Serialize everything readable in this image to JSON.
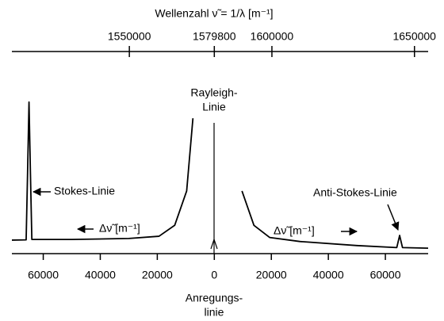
{
  "chart_data": {
    "type": "line",
    "x2label": "Wellenzahl ν̃ = 1/λ [m⁻¹]",
    "x": [
      -71000,
      -66000,
      -65500,
      -65000,
      -64500,
      -64000,
      -50000,
      -30000,
      -19400,
      -13900,
      -9700,
      -7500,
      7500,
      9700,
      13900,
      19400,
      30000,
      50000,
      64000,
      65000,
      66000,
      75000
    ],
    "values": [
      6.7,
      6.8,
      40,
      75,
      40,
      7,
      7,
      7.5,
      8.6,
      14,
      31,
      67,
      null,
      31,
      14,
      8,
      6,
      4,
      3,
      9,
      3,
      2.7
    ],
    "color": "#000000",
    "xlim": [
      -71000,
      75000
    ],
    "ylim": [
      0,
      100
    ],
    "xticks": [
      {
        "value": -60000,
        "label": "60000"
      },
      {
        "value": -40000,
        "label": "40000"
      },
      {
        "value": -20000,
        "label": "20000"
      },
      0,
      20000,
      40000,
      60000
    ],
    "x2lim": [
      1508800,
      1654800
    ],
    "x2ticks": [
      1550000,
      1579800,
      1600000,
      1650000
    ],
    "annotations": {
      "stokes": "Stokes-Linie",
      "anti_stokes": "Anti-Stokes-Linie",
      "rayleigh": [
        "Rayleigh-",
        "Linie"
      ],
      "excitation": [
        "Anregungs-",
        "linie"
      ],
      "delta_left": "Δν̃ [m⁻¹]",
      "delta_right": "Δν̃ [m⁻¹]"
    }
  }
}
